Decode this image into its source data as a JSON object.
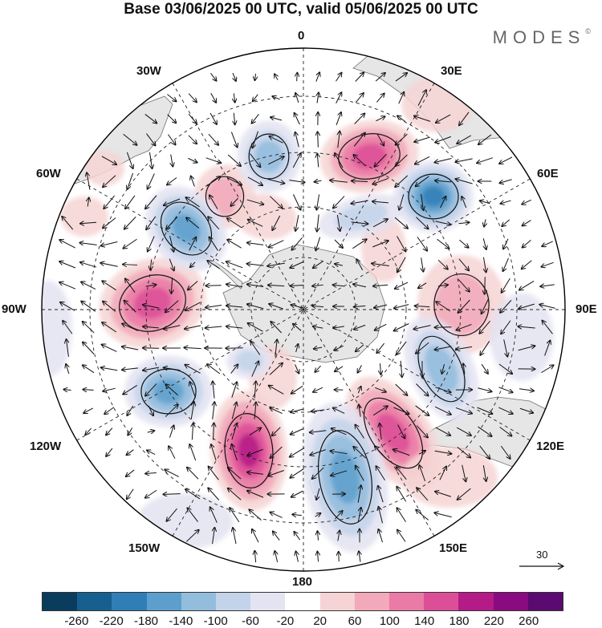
{
  "title": "Base 03/06/2025 00 UTC, valid 05/06/2025 00 UTC",
  "logo": "MODES",
  "logo_mark": "©",
  "map": {
    "projection": "south-polar-stereographic",
    "longitude_labels": {
      "top": "0",
      "top_left": "30W",
      "top_right": "30E",
      "upper_left": "60W",
      "upper_right": "60E",
      "left": "90W",
      "right": "90E",
      "lower_left": "120W",
      "lower_right": "120E",
      "bottom_left": "150W",
      "bottom_right": "150E",
      "bottom": "180"
    },
    "grid": "dashed meridians every 30 degrees and dashed latitude circles",
    "reference_vector": "30"
  },
  "colorbar": {
    "ticks": [
      "-260",
      "-220",
      "-180",
      "-140",
      "-100",
      "-60",
      "-20",
      "20",
      "60",
      "100",
      "140",
      "180",
      "220",
      "260"
    ],
    "colors": [
      "#0a3c5e",
      "#175f8f",
      "#2f7fb6",
      "#5d9fcc",
      "#93bddd",
      "#c3d4ea",
      "#e3e3f1",
      "#ffffff",
      "#f6d3d4",
      "#f2a9ba",
      "#ea7aa6",
      "#dd4e98",
      "#b51b86",
      "#8a0a80",
      "#5a0a70"
    ]
  },
  "colors": {
    "land": "#e6e6e6",
    "coast": "#707070",
    "arrow": "#111111"
  }
}
